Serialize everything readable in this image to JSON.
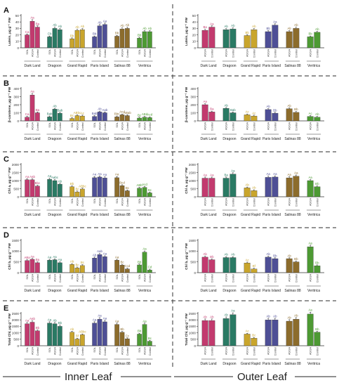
{
  "footer": {
    "inner": "Inner Leaf",
    "outer": "Outer Leaf"
  },
  "chart_data": {
    "type": "bar",
    "colors": {
      "Dark Land": "#c23a6e",
      "Dragoon": "#2a7a64",
      "Grand Rapid": "#c9a52c",
      "Paris Island": "#4e4f96",
      "Salinas 88": "#8c6c2c",
      "Veritrica": "#4d9a33"
    },
    "cultivars": [
      "Dark Land",
      "Dragoon",
      "Grand Rapid",
      "Paris Island",
      "Salinas 88",
      "Veritrica"
    ],
    "inner_treatments": [
      "SOL",
      "AGGA",
      "Control"
    ],
    "outer_treatments": [
      "AGGA",
      "Control"
    ],
    "panels": [
      {
        "label": "A",
        "ylabel": "Lutein, μg g⁻¹ FW",
        "inner": {
          "yticks": [
            "0",
            "10",
            "20",
            "30",
            "40",
            "50"
          ],
          "ymax": 50,
          "values": [
            [
              20,
              41,
              32
            ],
            [
              17,
              30,
              28
            ],
            [
              14,
              27,
              28
            ],
            [
              17,
              34,
              36
            ],
            [
              18,
              29,
              30
            ],
            [
              15,
              25,
              25
            ]
          ],
          "letters": [
            [
              "Ca",
              "Aa",
              "Ba"
            ],
            [
              "Cb",
              "Ab",
              "Ab"
            ],
            [
              "Bb",
              "Ab",
              "Ab"
            ],
            [
              "Bb",
              "Ab",
              "Aa"
            ],
            [
              "Bb",
              "Ab",
              "Ab"
            ],
            [
              "Bb",
              "Ab",
              "Ab"
            ]
          ]
        },
        "outer": {
          "yticks": [
            "0",
            "10",
            "20",
            "30",
            "40",
            "50"
          ],
          "ymax": 50,
          "values": [
            [
              27,
              32
            ],
            [
              28,
              29
            ],
            [
              19,
              28
            ],
            [
              25,
              35
            ],
            [
              25,
              30
            ],
            [
              17,
              24
            ]
          ],
          "letters": [
            [
              "Ba",
              "Aa"
            ],
            [
              "Ab",
              "Ab"
            ],
            [
              "Bb",
              "Ab"
            ],
            [
              "Bb",
              "Aa"
            ],
            [
              "Ab",
              "Ab"
            ],
            [
              "Bb",
              "Ab"
            ]
          ]
        }
      },
      {
        "label": "B",
        "ylabel": "β-carotene, μg g⁻¹ FW",
        "inner": {
          "yticks": [
            "0",
            "100",
            "200",
            "300",
            "400"
          ],
          "ymax": 400,
          "values": [
            [
              45,
              320,
              100
            ],
            [
              50,
              145,
              95
            ],
            [
              30,
              65,
              60
            ],
            [
              55,
              110,
              100
            ],
            [
              50,
              75,
              65
            ],
            [
              35,
              45,
              40
            ]
          ],
          "letters": [
            [
              "Ca",
              "Aa",
              "Ba"
            ],
            [
              "Bab",
              "Ab",
              "Bab"
            ],
            [
              "Bc",
              "ABbc",
              "Ac"
            ],
            [
              "Bab",
              "Ab",
              "Aab"
            ],
            [
              "Bbc",
              "Acd",
              "ABab"
            ],
            [
              "Bc",
              "ABd",
              "Acd"
            ]
          ]
        },
        "outer": {
          "yticks": [
            "0",
            "100",
            "200",
            "300",
            "400"
          ],
          "ymax": 400,
          "values": [
            [
              200,
              110
            ],
            [
              155,
              100
            ],
            [
              75,
              60
            ],
            [
              140,
              95
            ],
            [
              150,
              105
            ],
            [
              55,
              45
            ]
          ],
          "letters": [
            [
              "Aa",
              "Ba"
            ],
            [
              "Ab",
              "Bab"
            ],
            [
              "Ac",
              "Ac"
            ],
            [
              "Ab",
              "Bb"
            ],
            [
              "Ab",
              "Bb"
            ],
            [
              "Ac",
              "Ab"
            ]
          ]
        }
      },
      {
        "label": "C",
        "ylabel": "Chl a, μg g⁻¹ FW",
        "inner": {
          "yticks": [
            "0",
            "500",
            "1000",
            "1500",
            "2000"
          ],
          "ymax": 2000,
          "values": [
            [
              1050,
              1050,
              660
            ],
            [
              1080,
              1000,
              780
            ],
            [
              620,
              300,
              480
            ],
            [
              1180,
              1220,
              1160
            ],
            [
              1180,
              690,
              370
            ],
            [
              530,
              580,
              240
            ]
          ],
          "letters": [
            [
              "Aa",
              "Aab",
              "Bbc"
            ],
            [
              "Aa",
              "Aabc",
              "Ab"
            ],
            [
              "Bb",
              "Bc",
              "ABbc"
            ],
            [
              "Aa",
              "Aa",
              "Aa"
            ],
            [
              "Aa",
              "Bcd",
              "Bc"
            ],
            [
              "ABb",
              "Acd",
              "Bc"
            ]
          ]
        },
        "outer": {
          "yticks": [
            "0",
            "500",
            "1000",
            "1500",
            "2000"
          ],
          "ymax": 2000,
          "values": [
            [
              1150,
              1150
            ],
            [
              1150,
              1400
            ],
            [
              550,
              380
            ],
            [
              1200,
              1220
            ],
            [
              1170,
              1270
            ],
            [
              1000,
              620
            ]
          ],
          "letters": [
            [
              "Aa",
              "Aa"
            ],
            [
              "Ba",
              "Aa"
            ],
            [
              "Ab",
              "Ab"
            ],
            [
              "Aa",
              "Aa"
            ],
            [
              "Aa",
              "Aa"
            ],
            [
              "Aa",
              "Bb"
            ]
          ]
        }
      },
      {
        "label": "D",
        "ylabel": "Chl b, μg g⁻¹ FW",
        "inner": {
          "yticks": [
            "0",
            "500",
            "1000",
            "1500"
          ],
          "ymax": 1500,
          "values": [
            [
              560,
              620,
              460
            ],
            [
              580,
              600,
              460
            ],
            [
              380,
              220,
              330
            ],
            [
              680,
              840,
              740
            ],
            [
              580,
              350,
              170
            ],
            [
              360,
              950,
              120
            ]
          ],
          "letters": [
            [
              "ABa",
              "Aa",
              "Ba"
            ],
            [
              "Aa",
              "Aa",
              "Aa"
            ],
            [
              "Ab",
              "Bc",
              "Bc"
            ],
            [
              "Ab",
              "Aab",
              "Aa"
            ],
            [
              "Aa",
              "Bc",
              "Ccd"
            ],
            [
              "Bb",
              "Aa",
              "Cd"
            ]
          ]
        },
        "outer": {
          "yticks": [
            "0",
            "500",
            "1000",
            "1500"
          ],
          "ymax": 1500,
          "values": [
            [
              720,
              600
            ],
            [
              700,
              700
            ],
            [
              450,
              170
            ],
            [
              720,
              650
            ],
            [
              650,
              500
            ],
            [
              1200,
              320
            ]
          ],
          "letters": [
            [
              "Ab",
              "Bb"
            ],
            [
              "Ab",
              "Ab"
            ],
            [
              "Ac",
              "Bf"
            ],
            [
              "Ab",
              "Bb"
            ],
            [
              "Ab",
              "Bb"
            ],
            [
              "Aa",
              "Bb"
            ]
          ]
        }
      },
      {
        "label": "E",
        "ylabel": "Total Chl, μg g⁻¹ FW",
        "inner": {
          "yticks": [
            "0",
            "500",
            "1000",
            "1500",
            "2000",
            "2500"
          ],
          "ymax": 2500,
          "values": [
            [
              1700,
              1820,
              1150
            ],
            [
              1750,
              1700,
              1500
            ],
            [
              1050,
              520,
              850
            ],
            [
              1750,
              2050,
              1850
            ],
            [
              1650,
              1040,
              540
            ],
            [
              900,
              1650,
              350
            ]
          ],
          "letters": [
            [
              "Aa",
              "Aab",
              "Bb"
            ],
            [
              "Aa",
              "Ab",
              "Bb"
            ],
            [
              "Ab",
              "Bf",
              "ABbc"
            ],
            [
              "Aa",
              "Aa",
              "Aa"
            ],
            [
              "Aa",
              "Bb",
              "Cc"
            ],
            [
              "Bb",
              "Aa",
              "Bc"
            ]
          ]
        },
        "outer": {
          "yticks": [
            "0",
            "500",
            "1000",
            "1500",
            "2000",
            "2500"
          ],
          "ymax": 2500,
          "values": [
            [
              1950,
              1950
            ],
            [
              2100,
              2400
            ],
            [
              900,
              580
            ],
            [
              2000,
              2000
            ],
            [
              1900,
              2050
            ],
            [
              2450,
              1050
            ]
          ],
          "letters": [
            [
              "Ab",
              "Ab"
            ],
            [
              "Ab",
              "Aa"
            ],
            [
              "Ac",
              "Bc"
            ],
            [
              "Ab",
              "Ab"
            ],
            [
              "Ab",
              "Ab"
            ],
            [
              "Aa",
              "Bb"
            ]
          ]
        }
      }
    ]
  }
}
